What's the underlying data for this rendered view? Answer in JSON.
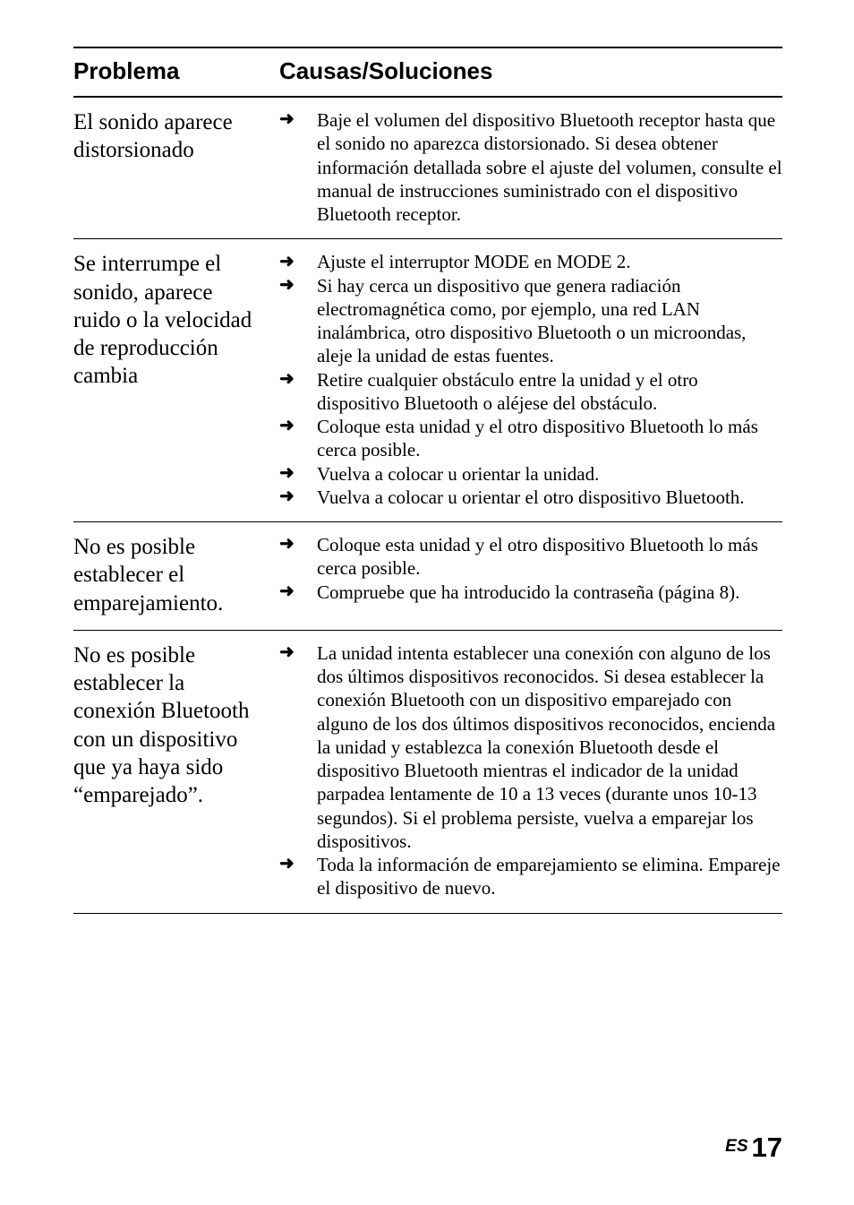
{
  "header": {
    "col1": "Problema",
    "col2": "Causas/Soluciones"
  },
  "rows": [
    {
      "problem": "El sonido aparece distorsionado",
      "solutions": [
        "Baje el volumen del dispositivo Bluetooth receptor hasta que el sonido no aparezca distorsionado. Si desea obtener información detallada sobre el ajuste del volumen, consulte el manual de instrucciones suministrado con el dispositivo Bluetooth receptor."
      ]
    },
    {
      "problem": "Se interrumpe el sonido, aparece ruido o la velocidad de reproducción cambia",
      "solutions": [
        "Ajuste el interruptor MODE en MODE 2.",
        "Si hay cerca un dispositivo que genera radiación electromagnética como, por ejemplo, una red LAN inalámbrica, otro dispositivo Bluetooth o un microondas, aleje la unidad de estas fuentes.",
        "Retire cualquier obstáculo entre la unidad y el otro dispositivo Bluetooth o aléjese del obstáculo.",
        "Coloque esta unidad y el otro dispositivo Bluetooth lo más cerca posible.",
        "Vuelva a colocar u orientar la unidad.",
        "Vuelva a colocar u orientar el otro dispositivo Bluetooth."
      ]
    },
    {
      "problem": "No es posible establecer el emparejamiento.",
      "solutions": [
        "Coloque esta unidad y el otro dispositivo Bluetooth lo más cerca posible.",
        "Compruebe que ha introducido la contraseña (página 8)."
      ]
    },
    {
      "problem": "No es posible establecer la conexión Bluetooth con un dispositivo que ya haya sido “emparejado”.",
      "solutions": [
        "La unidad intenta establecer una conexión con alguno de los dos últimos dispositivos reconocidos. Si desea establecer la conexión Bluetooth con un dispositivo emparejado con alguno de los dos últimos dispositivos reconocidos, encienda la unidad y establezca la conexión Bluetooth desde el dispositivo Bluetooth mientras el indicador de la unidad parpadea lentamente de 10 a 13 veces (durante unos 10-13 segundos). Si el problema persiste, vuelva a emparejar los dispositivos.",
        "Toda la información de emparejamiento se elimina. Empareje el dispositivo de nuevo."
      ]
    }
  ],
  "footer": {
    "lang": "ES",
    "page": "17"
  },
  "arrow_glyph": "➜",
  "colors": {
    "text": "#000000",
    "bg": "#ffffff",
    "rule": "#000000"
  },
  "typography": {
    "header_fontsize": 26,
    "header_weight": 800,
    "problem_fontsize": 25,
    "problem_lineheight": 1.25,
    "solution_fontsize": 21,
    "solution_lineheight": 1.25,
    "footer_lang_fontsize": 19,
    "footer_page_fontsize": 31
  }
}
